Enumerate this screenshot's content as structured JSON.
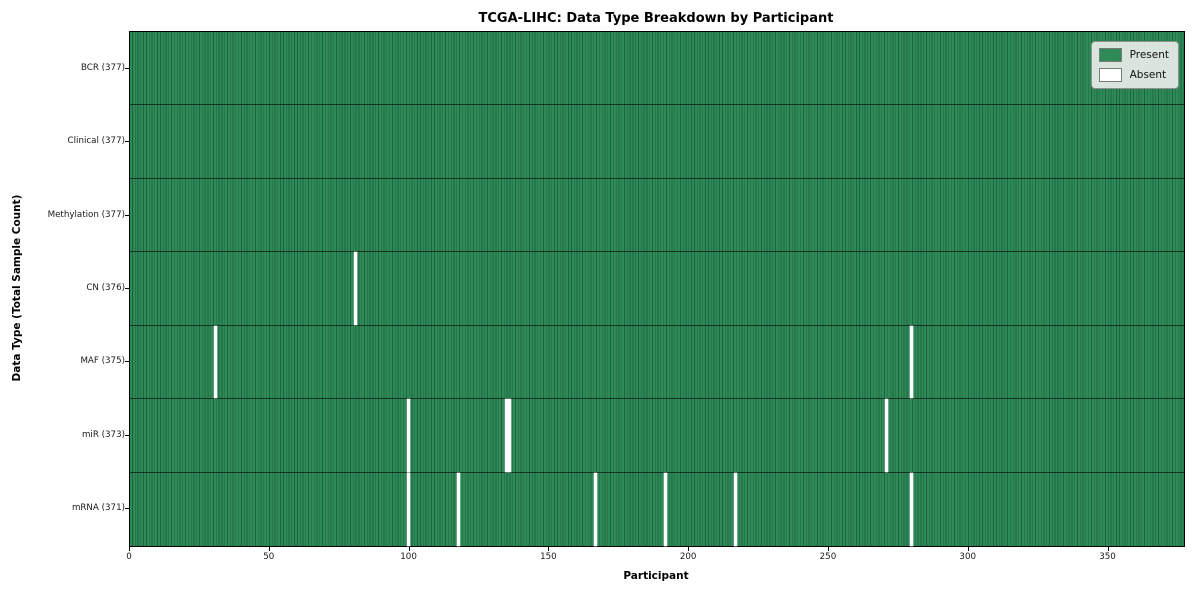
{
  "chart_data": {
    "type": "heatmap",
    "title": "TCGA-LIHC: Data Type Breakdown by Participant",
    "xlabel": "Participant",
    "ylabel": "Data Type (Total Sample Count)",
    "n_participants": 377,
    "xlim": [
      0,
      377
    ],
    "x_ticks": [
      0,
      50,
      100,
      150,
      200,
      250,
      300,
      350
    ],
    "grid": false,
    "legend": {
      "position": "upper right",
      "items": [
        {
          "label": "Present",
          "color": "#2e8b57"
        },
        {
          "label": "Absent",
          "color": "#ffffff"
        }
      ]
    },
    "rows": [
      {
        "label": "BCR (377)",
        "data_type": "BCR",
        "total": 377,
        "absent_participants": []
      },
      {
        "label": "Clinical (377)",
        "data_type": "Clinical",
        "total": 377,
        "absent_participants": []
      },
      {
        "label": "Methylation (377)",
        "data_type": "Methylation",
        "total": 377,
        "absent_participants": []
      },
      {
        "label": "CN (376)",
        "data_type": "CN",
        "total": 376,
        "absent_participants": [
          80
        ]
      },
      {
        "label": "MAF (375)",
        "data_type": "MAF",
        "total": 375,
        "absent_participants": [
          30,
          279
        ]
      },
      {
        "label": "miR (373)",
        "data_type": "miR",
        "total": 373,
        "absent_participants": [
          99,
          134,
          135,
          270
        ]
      },
      {
        "label": "mRNA (371)",
        "data_type": "mRNA",
        "total": 371,
        "absent_participants": [
          99,
          117,
          166,
          191,
          216,
          279
        ]
      }
    ],
    "colors": {
      "present": "#2e8b57",
      "present_column_line": "#1f6440",
      "absent": "#ffffff",
      "row_separator": "#0e1f15",
      "spine": "#000000",
      "legend_background": "#e8ede8"
    }
  }
}
